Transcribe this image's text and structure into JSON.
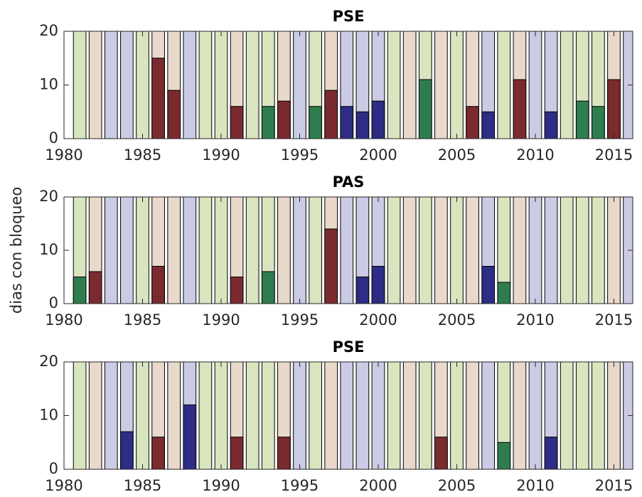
{
  "chart_data": [
    {
      "type": "bar",
      "title": "PSE",
      "x": [
        1981,
        1982,
        1983,
        1984,
        1985,
        1986,
        1987,
        1988,
        1989,
        1990,
        1991,
        1992,
        1993,
        1994,
        1995,
        1996,
        1997,
        1998,
        1999,
        2000,
        2001,
        2002,
        2003,
        2004,
        2005,
        2006,
        2007,
        2008,
        2009,
        2010,
        2011,
        2012,
        2013,
        2014,
        2015,
        2016
      ],
      "values": [
        0,
        0,
        0,
        0,
        0,
        15,
        9,
        0,
        0,
        0,
        6,
        0,
        6,
        7,
        0,
        6,
        9,
        6,
        5,
        7,
        0,
        0,
        11,
        0,
        0,
        6,
        5,
        0,
        11,
        0,
        5,
        0,
        7,
        6,
        11,
        0
      ],
      "colors": [
        "#2f7d4e",
        "#7a2b2e",
        "#2d2d85",
        "#2d2d85",
        "#2f7d4e",
        "#7a2b2e",
        "#7a2b2e",
        "#2d2d85",
        "#2f7d4e",
        "#2f7d4e",
        "#7a2b2e",
        "#2f7d4e",
        "#2f7d4e",
        "#7a2b2e",
        "#2d2d85",
        "#2f7d4e",
        "#7a2b2e",
        "#2d2d85",
        "#2d2d85",
        "#2d2d85",
        "#2f7d4e",
        "#7a2b2e",
        "#2f7d4e",
        "#7a2b2e",
        "#2f7d4e",
        "#7a2b2e",
        "#2d2d85",
        "#2f7d4e",
        "#7a2b2e",
        "#2d2d85",
        "#2d2d85",
        "#2f7d4e",
        "#2f7d4e",
        "#2f7d4e",
        "#7a2b2e",
        "#2d2d85"
      ],
      "background_colors": [
        "#d9e5bf",
        "#e8d9cb",
        "#cbcbe5",
        "#cbcbe5",
        "#d9e5bf",
        "#e8d9cb",
        "#e8d9cb",
        "#cbcbe5",
        "#d9e5bf",
        "#d9e5bf",
        "#e8d9cb",
        "#d9e5bf",
        "#d9e5bf",
        "#e8d9cb",
        "#cbcbe5",
        "#d9e5bf",
        "#e8d9cb",
        "#cbcbe5",
        "#cbcbe5",
        "#cbcbe5",
        "#d9e5bf",
        "#e8d9cb",
        "#d9e5bf",
        "#e8d9cb",
        "#d9e5bf",
        "#e8d9cb",
        "#cbcbe5",
        "#d9e5bf",
        "#e8d9cb",
        "#cbcbe5",
        "#cbcbe5",
        "#d9e5bf",
        "#d9e5bf",
        "#d9e5bf",
        "#e8d9cb",
        "#cbcbe5"
      ],
      "xlim": [
        1980,
        2016.2
      ],
      "xticks": [
        1980,
        1985,
        1990,
        1995,
        2000,
        2005,
        2010,
        2015
      ],
      "ylim": [
        0,
        20
      ],
      "yticks": [
        0,
        10,
        20
      ]
    },
    {
      "type": "bar",
      "title": "PAS",
      "ylabel": "dias con bloqueo",
      "x": [
        1981,
        1982,
        1983,
        1984,
        1985,
        1986,
        1987,
        1988,
        1989,
        1990,
        1991,
        1992,
        1993,
        1994,
        1995,
        1996,
        1997,
        1998,
        1999,
        2000,
        2001,
        2002,
        2003,
        2004,
        2005,
        2006,
        2007,
        2008,
        2009,
        2010,
        2011,
        2012,
        2013,
        2014,
        2015,
        2016
      ],
      "values": [
        5,
        6,
        0,
        0,
        0,
        7,
        0,
        0,
        0,
        0,
        5,
        0,
        6,
        0,
        0,
        0,
        14,
        0,
        5,
        7,
        0,
        0,
        0,
        0,
        0,
        0,
        7,
        4,
        0,
        0,
        0,
        0,
        0,
        0,
        0,
        0
      ],
      "colors": [
        "#2f7d4e",
        "#7a2b2e",
        "#2d2d85",
        "#2d2d85",
        "#2f7d4e",
        "#7a2b2e",
        "#7a2b2e",
        "#2d2d85",
        "#2f7d4e",
        "#2f7d4e",
        "#7a2b2e",
        "#2f7d4e",
        "#2f7d4e",
        "#7a2b2e",
        "#2d2d85",
        "#2f7d4e",
        "#7a2b2e",
        "#2d2d85",
        "#2d2d85",
        "#2d2d85",
        "#2f7d4e",
        "#7a2b2e",
        "#2f7d4e",
        "#7a2b2e",
        "#2f7d4e",
        "#7a2b2e",
        "#2d2d85",
        "#2f7d4e",
        "#7a2b2e",
        "#2d2d85",
        "#2d2d85",
        "#2f7d4e",
        "#2f7d4e",
        "#2f7d4e",
        "#7a2b2e",
        "#2d2d85"
      ],
      "background_colors": [
        "#d9e5bf",
        "#e8d9cb",
        "#cbcbe5",
        "#cbcbe5",
        "#d9e5bf",
        "#e8d9cb",
        "#e8d9cb",
        "#cbcbe5",
        "#d9e5bf",
        "#d9e5bf",
        "#e8d9cb",
        "#d9e5bf",
        "#d9e5bf",
        "#e8d9cb",
        "#cbcbe5",
        "#d9e5bf",
        "#e8d9cb",
        "#cbcbe5",
        "#cbcbe5",
        "#cbcbe5",
        "#d9e5bf",
        "#e8d9cb",
        "#d9e5bf",
        "#e8d9cb",
        "#d9e5bf",
        "#e8d9cb",
        "#cbcbe5",
        "#d9e5bf",
        "#e8d9cb",
        "#cbcbe5",
        "#cbcbe5",
        "#d9e5bf",
        "#d9e5bf",
        "#d9e5bf",
        "#e8d9cb",
        "#cbcbe5"
      ],
      "xlim": [
        1980,
        2016.2
      ],
      "xticks": [
        1980,
        1985,
        1990,
        1995,
        2000,
        2005,
        2010,
        2015
      ],
      "ylim": [
        0,
        20
      ],
      "yticks": [
        0,
        10,
        20
      ]
    },
    {
      "type": "bar",
      "title": "PSE",
      "x": [
        1981,
        1982,
        1983,
        1984,
        1985,
        1986,
        1987,
        1988,
        1989,
        1990,
        1991,
        1992,
        1993,
        1994,
        1995,
        1996,
        1997,
        1998,
        1999,
        2000,
        2001,
        2002,
        2003,
        2004,
        2005,
        2006,
        2007,
        2008,
        2009,
        2010,
        2011,
        2012,
        2013,
        2014,
        2015,
        2016
      ],
      "values": [
        0,
        0,
        0,
        7,
        0,
        6,
        0,
        12,
        0,
        0,
        6,
        0,
        0,
        6,
        0,
        0,
        0,
        0,
        0,
        0,
        0,
        0,
        0,
        6,
        0,
        0,
        0,
        5,
        0,
        0,
        6,
        0,
        0,
        0,
        0,
        0
      ],
      "colors": [
        "#2f7d4e",
        "#7a2b2e",
        "#2d2d85",
        "#2d2d85",
        "#2f7d4e",
        "#7a2b2e",
        "#7a2b2e",
        "#2d2d85",
        "#2f7d4e",
        "#2f7d4e",
        "#7a2b2e",
        "#2f7d4e",
        "#2f7d4e",
        "#7a2b2e",
        "#2d2d85",
        "#2f7d4e",
        "#7a2b2e",
        "#2d2d85",
        "#2d2d85",
        "#2d2d85",
        "#2f7d4e",
        "#7a2b2e",
        "#2f7d4e",
        "#7a2b2e",
        "#2f7d4e",
        "#7a2b2e",
        "#2d2d85",
        "#2f7d4e",
        "#7a2b2e",
        "#2d2d85",
        "#2d2d85",
        "#2f7d4e",
        "#2f7d4e",
        "#2f7d4e",
        "#7a2b2e",
        "#2d2d85"
      ],
      "background_colors": [
        "#d9e5bf",
        "#e8d9cb",
        "#cbcbe5",
        "#cbcbe5",
        "#d9e5bf",
        "#e8d9cb",
        "#e8d9cb",
        "#cbcbe5",
        "#d9e5bf",
        "#d9e5bf",
        "#e8d9cb",
        "#d9e5bf",
        "#d9e5bf",
        "#e8d9cb",
        "#cbcbe5",
        "#d9e5bf",
        "#e8d9cb",
        "#cbcbe5",
        "#cbcbe5",
        "#cbcbe5",
        "#d9e5bf",
        "#e8d9cb",
        "#d9e5bf",
        "#e8d9cb",
        "#d9e5bf",
        "#e8d9cb",
        "#cbcbe5",
        "#d9e5bf",
        "#e8d9cb",
        "#cbcbe5",
        "#cbcbe5",
        "#d9e5bf",
        "#d9e5bf",
        "#d9e5bf",
        "#e8d9cb",
        "#cbcbe5"
      ],
      "xlim": [
        1980,
        2016.2
      ],
      "xticks": [
        1980,
        1985,
        1990,
        1995,
        2000,
        2005,
        2010,
        2015
      ],
      "ylim": [
        0,
        20
      ],
      "yticks": [
        0,
        10,
        20
      ]
    }
  ]
}
